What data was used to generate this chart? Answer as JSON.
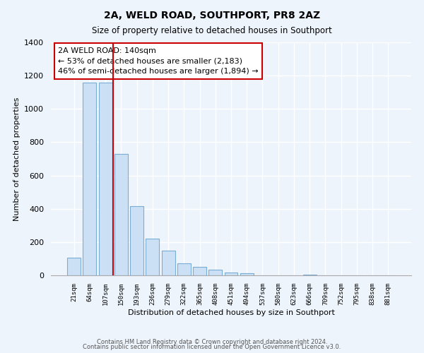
{
  "title": "2A, WELD ROAD, SOUTHPORT, PR8 2AZ",
  "subtitle": "Size of property relative to detached houses in Southport",
  "xlabel": "Distribution of detached houses by size in Southport",
  "ylabel": "Number of detached properties",
  "bar_labels": [
    "21sqm",
    "64sqm",
    "107sqm",
    "150sqm",
    "193sqm",
    "236sqm",
    "279sqm",
    "322sqm",
    "365sqm",
    "408sqm",
    "451sqm",
    "494sqm",
    "537sqm",
    "580sqm",
    "623sqm",
    "666sqm",
    "709sqm",
    "752sqm",
    "795sqm",
    "838sqm",
    "881sqm"
  ],
  "bar_values": [
    107,
    1160,
    1160,
    730,
    415,
    220,
    148,
    73,
    50,
    33,
    18,
    14,
    0,
    0,
    0,
    5,
    0,
    0,
    0,
    0,
    0
  ],
  "bar_color": "#cce0f5",
  "bar_edge_color": "#7aadd4",
  "vline_x": 2.5,
  "vline_color": "#cc0000",
  "annotation_title": "2A WELD ROAD: 140sqm",
  "annotation_line1": "← 53% of detached houses are smaller (2,183)",
  "annotation_line2": "46% of semi-detached houses are larger (1,894) →",
  "annotation_box_facecolor": "#ffffff",
  "annotation_box_edgecolor": "#cc0000",
  "ylim": [
    0,
    1400
  ],
  "yticks": [
    0,
    200,
    400,
    600,
    800,
    1000,
    1200,
    1400
  ],
  "footer1": "Contains HM Land Registry data © Crown copyright and database right 2024.",
  "footer2": "Contains public sector information licensed under the Open Government Licence v3.0.",
  "bg_color": "#eef4fc",
  "grid_color": "#ffffff",
  "spine_color": "#aaaaaa"
}
